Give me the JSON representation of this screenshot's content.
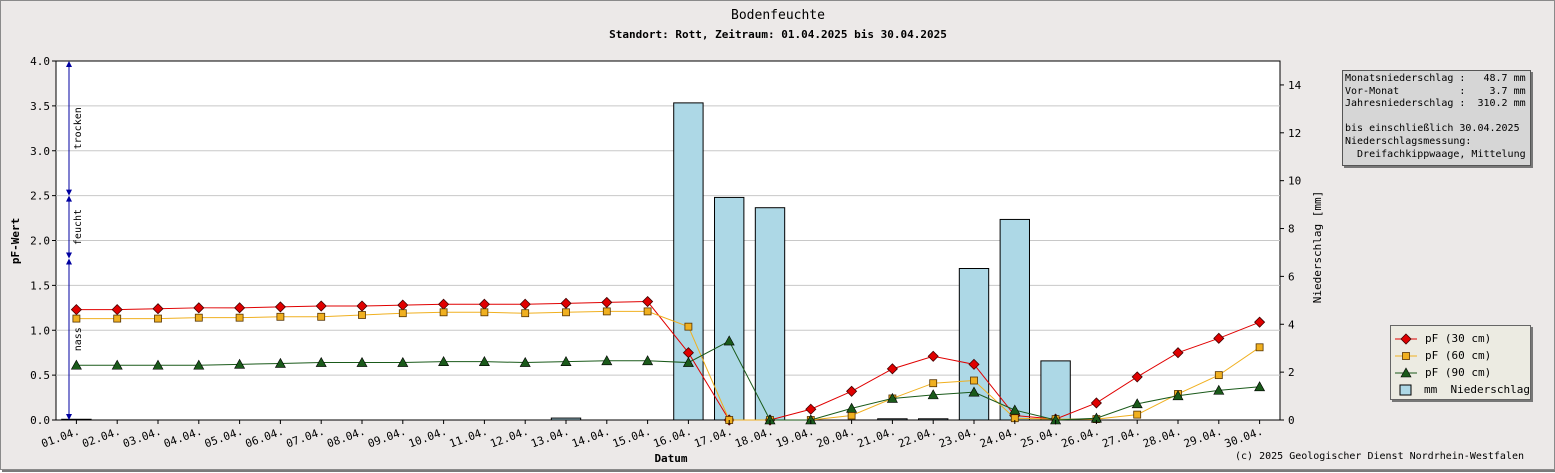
{
  "chart_data": {
    "type": "bar+line",
    "title": "Bodenfeuchte",
    "subtitle": "Standort: Rott, Zeitraum: 01.04.2025 bis 30.04.2025",
    "xlabel": "Datum",
    "ylabel_left": "pF-Wert",
    "ylabel_right": "Niederschlag [mm]",
    "ylim_left": [
      0,
      4
    ],
    "ylim_right": [
      0,
      15
    ],
    "yticks_left": [
      "0.0",
      "0.5",
      "1.0",
      "1.5",
      "2.0",
      "2.5",
      "3.0",
      "3.5",
      "4.0"
    ],
    "yticks_right": [
      "0",
      "2",
      "4",
      "6",
      "8",
      "10",
      "12",
      "14"
    ],
    "categories": [
      "01.04.",
      "02.04.",
      "03.04.",
      "04.04.",
      "05.04.",
      "06.04.",
      "07.04.",
      "08.04.",
      "09.04.",
      "10.04.",
      "11.04.",
      "12.04.",
      "13.04.",
      "14.04.",
      "15.04.",
      "16.04.",
      "17.04.",
      "18.04.",
      "19.04.",
      "20.04.",
      "21.04.",
      "22.04.",
      "23.04.",
      "24.04.",
      "25.04.",
      "26.04.",
      "27.04.",
      "28.04.",
      "29.04.",
      "30.04."
    ],
    "zones": [
      {
        "label": "nass",
        "from": 0.0,
        "to": 1.8
      },
      {
        "label": "feucht",
        "from": 1.8,
        "to": 2.5
      },
      {
        "label": "trocken",
        "from": 2.5,
        "to": 4.0
      }
    ],
    "series": [
      {
        "name": "pF (30 cm)",
        "axis": "left",
        "color": "#e00000",
        "marker": "diamond",
        "values": [
          1.23,
          1.23,
          1.24,
          1.25,
          1.25,
          1.26,
          1.27,
          1.27,
          1.28,
          1.29,
          1.29,
          1.29,
          1.3,
          1.31,
          1.32,
          0.75,
          0.0,
          0.0,
          0.12,
          0.32,
          0.57,
          0.71,
          0.62,
          0.05,
          0.01,
          0.19,
          0.48,
          0.75,
          0.91,
          1.09
        ]
      },
      {
        "name": "pF (60 cm)",
        "axis": "left",
        "color": "#f0b020",
        "marker": "square",
        "values": [
          1.13,
          1.13,
          1.13,
          1.14,
          1.14,
          1.15,
          1.15,
          1.17,
          1.19,
          1.2,
          1.2,
          1.19,
          1.2,
          1.21,
          1.21,
          1.04,
          0.0,
          0.0,
          0.0,
          0.05,
          0.24,
          0.41,
          0.44,
          0.02,
          0.01,
          0.01,
          0.06,
          0.29,
          0.5,
          0.81
        ]
      },
      {
        "name": "pF (90 cm)",
        "axis": "left",
        "color": "#1a5a1a",
        "marker": "triangle",
        "values": [
          0.61,
          0.61,
          0.61,
          0.61,
          0.62,
          0.63,
          0.64,
          0.64,
          0.64,
          0.65,
          0.65,
          0.64,
          0.65,
          0.66,
          0.66,
          0.64,
          0.88,
          0.0,
          0.0,
          0.13,
          0.24,
          0.28,
          0.31,
          0.11,
          0.0,
          0.02,
          0.18,
          0.27,
          0.33,
          0.37
        ]
      },
      {
        "name": "mm  Niederschlag",
        "axis": "right",
        "color": "#add8e6",
        "type": "bar",
        "values": [
          0.03,
          0,
          0,
          0,
          0,
          0,
          0,
          0,
          0,
          0,
          0,
          0,
          0.08,
          0,
          0,
          13.25,
          9.3,
          8.87,
          0,
          0,
          0.05,
          0.05,
          6.33,
          8.38,
          2.47,
          0,
          0,
          0,
          0,
          0
        ]
      }
    ],
    "grid": "horizontal",
    "legend": "bottom-right"
  },
  "info": {
    "lines": [
      "Monatsniederschlag :   48.7 mm",
      "Vor-Monat          :    3.7 mm",
      "Jahresniederschlag :  310.2 mm",
      "",
      "bis einschließlich 30.04.2025",
      "Niederschlagsmessung:",
      "  Dreifachkippwaage, Mittelung"
    ]
  },
  "copyright": "(c) 2025 Geologischer Dienst Nordrhein-Westfalen",
  "colors": {
    "background": "#ece9e8",
    "plot": "#ffffff",
    "bar": "#add8e6",
    "zone_arrow": "#0000a0"
  }
}
